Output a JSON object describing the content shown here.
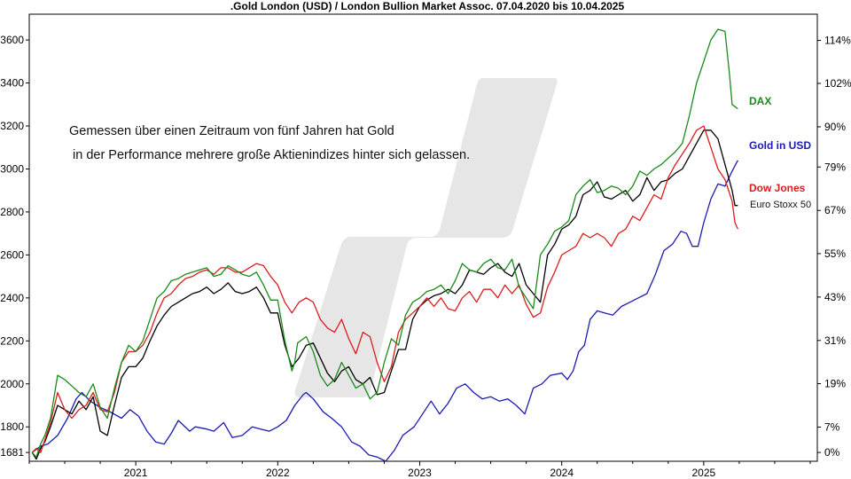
{
  "chart_data": {
    "type": "line",
    "title": ".Gold London (USD) / London Bullion Market Assoc. 07.04.2020 bis 10.04.2025",
    "annotation": [
      "Gemessen über einen Zeitraum von fünf Jahren hat Gold",
      "in der Performance mehrere große Aktienindizes hinter sich gelassen."
    ],
    "x_ticks": [
      "2021",
      "2022",
      "2023",
      "2024",
      "2025"
    ],
    "x_tick_values": [
      2021.0,
      2022.0,
      2023.0,
      2024.0,
      2025.0
    ],
    "xlim": [
      2020.25,
      2025.8
    ],
    "ylim_left": [
      1640,
      3720
    ],
    "yticks_left": [
      1681,
      1800,
      2000,
      2200,
      2400,
      2600,
      2800,
      3000,
      3200,
      3400,
      3600
    ],
    "yticks_right": [
      "0%",
      "7%",
      "19%",
      "31%",
      "43%",
      "55%",
      "67%",
      "79%",
      "90%",
      "102%",
      "114%"
    ],
    "yticks_right_values": [
      1681,
      1799,
      2001,
      2202,
      2404,
      2606,
      2807,
      3009,
      3196,
      3398,
      3598
    ],
    "grid": false,
    "colors": {
      "gold": "#1a1ab4",
      "dax": "#1a8a1a",
      "dow": "#dd1c1c",
      "stoxx": "#000000",
      "watermark": "#e6e6e6"
    },
    "series": [
      {
        "name": "Gold in USD",
        "color": "#1a1ab4",
        "x": [
          2020.27,
          2020.33,
          2020.38,
          2020.45,
          2020.52,
          2020.58,
          2020.62,
          2020.68,
          2020.75,
          2020.82,
          2020.9,
          2020.96,
          2021.02,
          2021.08,
          2021.14,
          2021.2,
          2021.25,
          2021.3,
          2021.38,
          2021.42,
          2021.5,
          2021.55,
          2021.62,
          2021.68,
          2021.75,
          2021.82,
          2021.88,
          2021.94,
          2022.0,
          2022.06,
          2022.12,
          2022.18,
          2022.2,
          2022.25,
          2022.32,
          2022.38,
          2022.45,
          2022.52,
          2022.58,
          2022.64,
          2022.7,
          2022.76,
          2022.82,
          2022.88,
          2022.96,
          2023.02,
          2023.08,
          2023.14,
          2023.2,
          2023.26,
          2023.32,
          2023.38,
          2023.44,
          2023.5,
          2023.56,
          2023.62,
          2023.68,
          2023.74,
          2023.8,
          2023.86,
          2023.92,
          2024.0,
          2024.04,
          2024.08,
          2024.12,
          2024.16,
          2024.2,
          2024.25,
          2024.3,
          2024.36,
          2024.42,
          2024.48,
          2024.54,
          2024.6,
          2024.66,
          2024.72,
          2024.78,
          2024.84,
          2024.88,
          2024.92,
          2024.96,
          2025.0,
          2025.05,
          2025.1,
          2025.15,
          2025.2,
          2025.24
        ],
        "y": [
          1681,
          1710,
          1720,
          1760,
          1840,
          1930,
          1960,
          1920,
          1890,
          1870,
          1840,
          1880,
          1850,
          1780,
          1730,
          1720,
          1770,
          1830,
          1780,
          1800,
          1790,
          1780,
          1820,
          1750,
          1760,
          1800,
          1790,
          1780,
          1800,
          1830,
          1900,
          1950,
          1960,
          1930,
          1870,
          1840,
          1800,
          1730,
          1710,
          1670,
          1660,
          1640,
          1690,
          1760,
          1800,
          1860,
          1920,
          1860,
          1910,
          1980,
          2000,
          1960,
          1930,
          1940,
          1920,
          1930,
          1900,
          1860,
          1980,
          2000,
          2040,
          2050,
          2020,
          2060,
          2150,
          2180,
          2300,
          2340,
          2330,
          2320,
          2360,
          2380,
          2400,
          2420,
          2510,
          2620,
          2650,
          2710,
          2700,
          2640,
          2640,
          2750,
          2860,
          2930,
          2920,
          2990,
          3040
        ]
      },
      {
        "name": "DAX",
        "color": "#1a8a1a",
        "x": [
          2020.27,
          2020.3,
          2020.33,
          2020.36,
          2020.4,
          2020.45,
          2020.5,
          2020.55,
          2020.6,
          2020.65,
          2020.7,
          2020.75,
          2020.8,
          2020.85,
          2020.9,
          2020.95,
          2021.0,
          2021.05,
          2021.1,
          2021.15,
          2021.2,
          2021.25,
          2021.3,
          2021.35,
          2021.4,
          2021.45,
          2021.5,
          2021.55,
          2021.6,
          2021.65,
          2021.7,
          2021.75,
          2021.8,
          2021.85,
          2021.9,
          2021.95,
          2022.0,
          2022.05,
          2022.1,
          2022.12,
          2022.14,
          2022.2,
          2022.25,
          2022.3,
          2022.35,
          2022.4,
          2022.45,
          2022.5,
          2022.55,
          2022.6,
          2022.65,
          2022.7,
          2022.75,
          2022.8,
          2022.85,
          2022.9,
          2022.95,
          2023.0,
          2023.05,
          2023.1,
          2023.15,
          2023.2,
          2023.25,
          2023.3,
          2023.35,
          2023.4,
          2023.45,
          2023.5,
          2023.55,
          2023.6,
          2023.65,
          2023.7,
          2023.75,
          2023.8,
          2023.85,
          2023.9,
          2023.95,
          2024.0,
          2024.05,
          2024.1,
          2024.15,
          2024.2,
          2024.25,
          2024.3,
          2024.35,
          2024.4,
          2024.45,
          2024.5,
          2024.55,
          2024.6,
          2024.65,
          2024.7,
          2024.75,
          2024.8,
          2024.85,
          2024.9,
          2024.95,
          2025.0,
          2025.05,
          2025.1,
          2025.15,
          2025.18,
          2025.2,
          2025.22,
          2025.24
        ],
        "y": [
          1681,
          1660,
          1720,
          1760,
          1840,
          2040,
          2020,
          1990,
          1960,
          1940,
          2000,
          1890,
          1840,
          1980,
          2100,
          2180,
          2150,
          2200,
          2300,
          2400,
          2430,
          2480,
          2490,
          2510,
          2520,
          2530,
          2540,
          2500,
          2510,
          2550,
          2530,
          2510,
          2500,
          2520,
          2460,
          2390,
          2390,
          2200,
          2060,
          2100,
          2190,
          2220,
          2150,
          2040,
          1990,
          2020,
          2100,
          2040,
          1980,
          2000,
          1930,
          1960,
          2100,
          2210,
          2180,
          2320,
          2380,
          2400,
          2430,
          2440,
          2460,
          2420,
          2480,
          2560,
          2530,
          2520,
          2560,
          2580,
          2540,
          2530,
          2580,
          2450,
          2400,
          2350,
          2600,
          2650,
          2710,
          2730,
          2760,
          2880,
          2920,
          2950,
          2890,
          2900,
          2920,
          2910,
          2880,
          2920,
          2990,
          2970,
          3000,
          3020,
          3050,
          3080,
          3120,
          3250,
          3400,
          3500,
          3600,
          3650,
          3640,
          3450,
          3300,
          3290,
          3280
        ]
      },
      {
        "name": "Dow Jones",
        "color": "#dd1c1c",
        "x": [
          2020.27,
          2020.3,
          2020.33,
          2020.36,
          2020.4,
          2020.45,
          2020.5,
          2020.55,
          2020.6,
          2020.65,
          2020.7,
          2020.75,
          2020.8,
          2020.85,
          2020.9,
          2020.95,
          2021.0,
          2021.05,
          2021.1,
          2021.15,
          2021.2,
          2021.25,
          2021.3,
          2021.35,
          2021.4,
          2021.45,
          2021.5,
          2021.55,
          2021.6,
          2021.65,
          2021.7,
          2021.75,
          2021.8,
          2021.85,
          2021.9,
          2021.95,
          2022.0,
          2022.05,
          2022.1,
          2022.15,
          2022.2,
          2022.25,
          2022.3,
          2022.35,
          2022.4,
          2022.45,
          2022.5,
          2022.55,
          2022.6,
          2022.65,
          2022.7,
          2022.75,
          2022.8,
          2022.85,
          2022.9,
          2022.95,
          2023.0,
          2023.05,
          2023.1,
          2023.15,
          2023.2,
          2023.25,
          2023.3,
          2023.35,
          2023.4,
          2023.45,
          2023.5,
          2023.55,
          2023.6,
          2023.65,
          2023.7,
          2023.75,
          2023.8,
          2023.85,
          2023.9,
          2023.95,
          2024.0,
          2024.05,
          2024.1,
          2024.15,
          2024.2,
          2024.25,
          2024.3,
          2024.35,
          2024.4,
          2024.45,
          2024.5,
          2024.55,
          2024.6,
          2024.65,
          2024.7,
          2024.75,
          2024.8,
          2024.85,
          2024.9,
          2024.95,
          2025.0,
          2025.05,
          2025.1,
          2025.15,
          2025.2,
          2025.22,
          2025.24
        ],
        "y": [
          1681,
          1700,
          1680,
          1740,
          1820,
          1960,
          1880,
          1840,
          1880,
          1900,
          1960,
          1880,
          1870,
          1960,
          2100,
          2150,
          2150,
          2180,
          2240,
          2330,
          2400,
          2420,
          2460,
          2490,
          2500,
          2520,
          2530,
          2510,
          2540,
          2540,
          2520,
          2520,
          2540,
          2560,
          2550,
          2500,
          2460,
          2380,
          2330,
          2380,
          2400,
          2380,
          2300,
          2260,
          2240,
          2300,
          2210,
          2140,
          2240,
          2220,
          2100,
          2010,
          2080,
          2240,
          2300,
          2330,
          2360,
          2400,
          2360,
          2400,
          2350,
          2340,
          2400,
          2430,
          2380,
          2440,
          2440,
          2400,
          2460,
          2420,
          2460,
          2370,
          2310,
          2330,
          2450,
          2520,
          2600,
          2620,
          2640,
          2700,
          2680,
          2700,
          2680,
          2640,
          2700,
          2720,
          2780,
          2760,
          2820,
          2880,
          2860,
          2960,
          3020,
          3070,
          3120,
          3180,
          3200,
          3100,
          3000,
          2950,
          2850,
          2750,
          2720
        ]
      },
      {
        "name": "Euro Stoxx 50",
        "color": "#000000",
        "x": [
          2020.27,
          2020.3,
          2020.33,
          2020.36,
          2020.4,
          2020.45,
          2020.5,
          2020.55,
          2020.6,
          2020.65,
          2020.7,
          2020.75,
          2020.8,
          2020.85,
          2020.9,
          2020.95,
          2021.0,
          2021.05,
          2021.1,
          2021.15,
          2021.2,
          2021.25,
          2021.3,
          2021.35,
          2021.4,
          2021.45,
          2021.5,
          2021.55,
          2021.6,
          2021.65,
          2021.7,
          2021.75,
          2021.8,
          2021.85,
          2021.9,
          2021.95,
          2022.0,
          2022.05,
          2022.1,
          2022.15,
          2022.2,
          2022.25,
          2022.3,
          2022.35,
          2022.4,
          2022.45,
          2022.5,
          2022.55,
          2022.6,
          2022.65,
          2022.7,
          2022.75,
          2022.8,
          2022.85,
          2022.9,
          2022.95,
          2023.0,
          2023.05,
          2023.1,
          2023.15,
          2023.2,
          2023.25,
          2023.3,
          2023.35,
          2023.4,
          2023.45,
          2023.5,
          2023.55,
          2023.6,
          2023.65,
          2023.7,
          2023.75,
          2023.8,
          2023.85,
          2023.9,
          2023.95,
          2024.0,
          2024.05,
          2024.1,
          2024.15,
          2024.2,
          2024.25,
          2024.3,
          2024.35,
          2024.4,
          2024.45,
          2024.5,
          2024.55,
          2024.6,
          2024.65,
          2024.7,
          2024.75,
          2024.8,
          2024.85,
          2024.9,
          2024.95,
          2025.0,
          2025.05,
          2025.1,
          2025.15,
          2025.2,
          2025.22,
          2025.24
        ],
        "y": [
          1681,
          1650,
          1700,
          1730,
          1800,
          1900,
          1880,
          1860,
          1920,
          1880,
          1940,
          1780,
          1760,
          1900,
          2030,
          2080,
          2080,
          2120,
          2200,
          2270,
          2320,
          2360,
          2380,
          2400,
          2420,
          2430,
          2450,
          2420,
          2440,
          2470,
          2430,
          2420,
          2430,
          2450,
          2400,
          2330,
          2330,
          2180,
          2080,
          2120,
          2180,
          2190,
          2120,
          2050,
          2010,
          2060,
          2080,
          2020,
          2000,
          2030,
          1950,
          1960,
          2060,
          2160,
          2160,
          2300,
          2360,
          2390,
          2410,
          2420,
          2440,
          2420,
          2460,
          2530,
          2520,
          2510,
          2540,
          2560,
          2520,
          2500,
          2560,
          2460,
          2420,
          2380,
          2600,
          2650,
          2720,
          2740,
          2780,
          2880,
          2900,
          2940,
          2870,
          2860,
          2880,
          2900,
          2850,
          2880,
          2960,
          2900,
          2940,
          2950,
          2980,
          3000,
          3060,
          3120,
          3180,
          3180,
          3140,
          3020,
          2900,
          2830,
          2830
        ]
      }
    ],
    "labels": {
      "dax": "DAX",
      "gold": "Gold in USD",
      "dow": "Dow Jones",
      "stoxx": "Euro Stoxx 50"
    }
  }
}
